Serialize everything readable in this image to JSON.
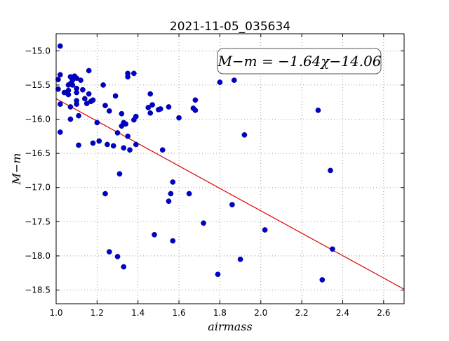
{
  "chart_data": {
    "type": "scatter",
    "title": "2021-11-05_035634",
    "xlabel": "airmass",
    "ylabel": "M−m",
    "xlim": [
      1.0,
      2.7
    ],
    "ylim": [
      -18.7,
      -14.75
    ],
    "y_inverted": true,
    "grid": true,
    "xticks": [
      "1.0",
      "1.2",
      "1.4",
      "1.6",
      "1.8",
      "2.0",
      "2.2",
      "2.4",
      "2.6"
    ],
    "yticks": [
      "−15.0",
      "−15.5",
      "−16.0",
      "−16.5",
      "−17.0",
      "−17.5",
      "−18.0",
      "−18.5"
    ],
    "annotation": "M−m = −1.64χ−14.06",
    "fit": {
      "slope": -1.64,
      "intercept": -14.06,
      "color": "#dd0000"
    },
    "point_color": "#0000cc",
    "points": [
      [
        1.02,
        -14.93
      ],
      [
        1.02,
        -15.35
      ],
      [
        1.01,
        -15.42
      ],
      [
        1.01,
        -15.56
      ],
      [
        1.02,
        -15.78
      ],
      [
        1.02,
        -16.19
      ],
      [
        1.04,
        -15.61
      ],
      [
        1.05,
        -15.61
      ],
      [
        1.06,
        -15.58
      ],
      [
        1.06,
        -15.64
      ],
      [
        1.06,
        -15.5
      ],
      [
        1.07,
        -15.48
      ],
      [
        1.07,
        -15.38
      ],
      [
        1.07,
        -15.82
      ],
      [
        1.08,
        -15.43
      ],
      [
        1.08,
        -15.5
      ],
      [
        1.07,
        -16.0
      ],
      [
        1.09,
        -15.37
      ],
      [
        1.1,
        -15.4
      ],
      [
        1.1,
        -15.55
      ],
      [
        1.1,
        -15.61
      ],
      [
        1.1,
        -15.73
      ],
      [
        1.1,
        -15.78
      ],
      [
        1.12,
        -15.43
      ],
      [
        1.13,
        -15.57
      ],
      [
        1.14,
        -15.7
      ],
      [
        1.15,
        -15.77
      ],
      [
        1.16,
        -15.29
      ],
      [
        1.16,
        -15.63
      ],
      [
        1.17,
        -15.74
      ],
      [
        1.18,
        -15.72
      ],
      [
        1.11,
        -15.95
      ],
      [
        1.11,
        -16.38
      ],
      [
        1.18,
        -16.35
      ],
      [
        1.2,
        -16.05
      ],
      [
        1.21,
        -16.32
      ],
      [
        1.23,
        -15.5
      ],
      [
        1.24,
        -15.8
      ],
      [
        1.25,
        -16.37
      ],
      [
        1.26,
        -15.88
      ],
      [
        1.28,
        -16.39
      ],
      [
        1.29,
        -15.66
      ],
      [
        1.3,
        -16.2
      ],
      [
        1.32,
        -15.92
      ],
      [
        1.32,
        -16.1
      ],
      [
        1.33,
        -16.05
      ],
      [
        1.34,
        -16.07
      ],
      [
        1.35,
        -16.25
      ],
      [
        1.35,
        -15.33
      ],
      [
        1.35,
        -15.38
      ],
      [
        1.36,
        -16.45
      ],
      [
        1.38,
        -15.33
      ],
      [
        1.38,
        -16.01
      ],
      [
        1.39,
        -15.96
      ],
      [
        1.39,
        -16.37
      ],
      [
        1.33,
        -16.42
      ],
      [
        1.31,
        -16.8
      ],
      [
        1.24,
        -17.09
      ],
      [
        1.26,
        -17.94
      ],
      [
        1.3,
        -18.01
      ],
      [
        1.33,
        -18.16
      ],
      [
        1.45,
        -15.83
      ],
      [
        1.46,
        -15.63
      ],
      [
        1.46,
        -15.91
      ],
      [
        1.47,
        -15.79
      ],
      [
        1.5,
        -15.86
      ],
      [
        1.51,
        -15.85
      ],
      [
        1.52,
        -16.45
      ],
      [
        1.55,
        -15.82
      ],
      [
        1.56,
        -17.09
      ],
      [
        1.55,
        -17.2
      ],
      [
        1.57,
        -16.92
      ],
      [
        1.57,
        -17.78
      ],
      [
        1.48,
        -17.69
      ],
      [
        1.6,
        -15.98
      ],
      [
        1.65,
        -17.09
      ],
      [
        1.67,
        -15.84
      ],
      [
        1.68,
        -15.87
      ],
      [
        1.68,
        -15.72
      ],
      [
        1.72,
        -17.52
      ],
      [
        1.79,
        -18.27
      ],
      [
        1.8,
        -15.46
      ],
      [
        1.86,
        -17.25
      ],
      [
        1.87,
        -15.43
      ],
      [
        1.9,
        -18.05
      ],
      [
        1.92,
        -16.23
      ],
      [
        2.02,
        -17.62
      ],
      [
        2.28,
        -15.87
      ],
      [
        2.3,
        -18.35
      ],
      [
        2.34,
        -16.75
      ],
      [
        2.35,
        -17.9
      ]
    ]
  }
}
